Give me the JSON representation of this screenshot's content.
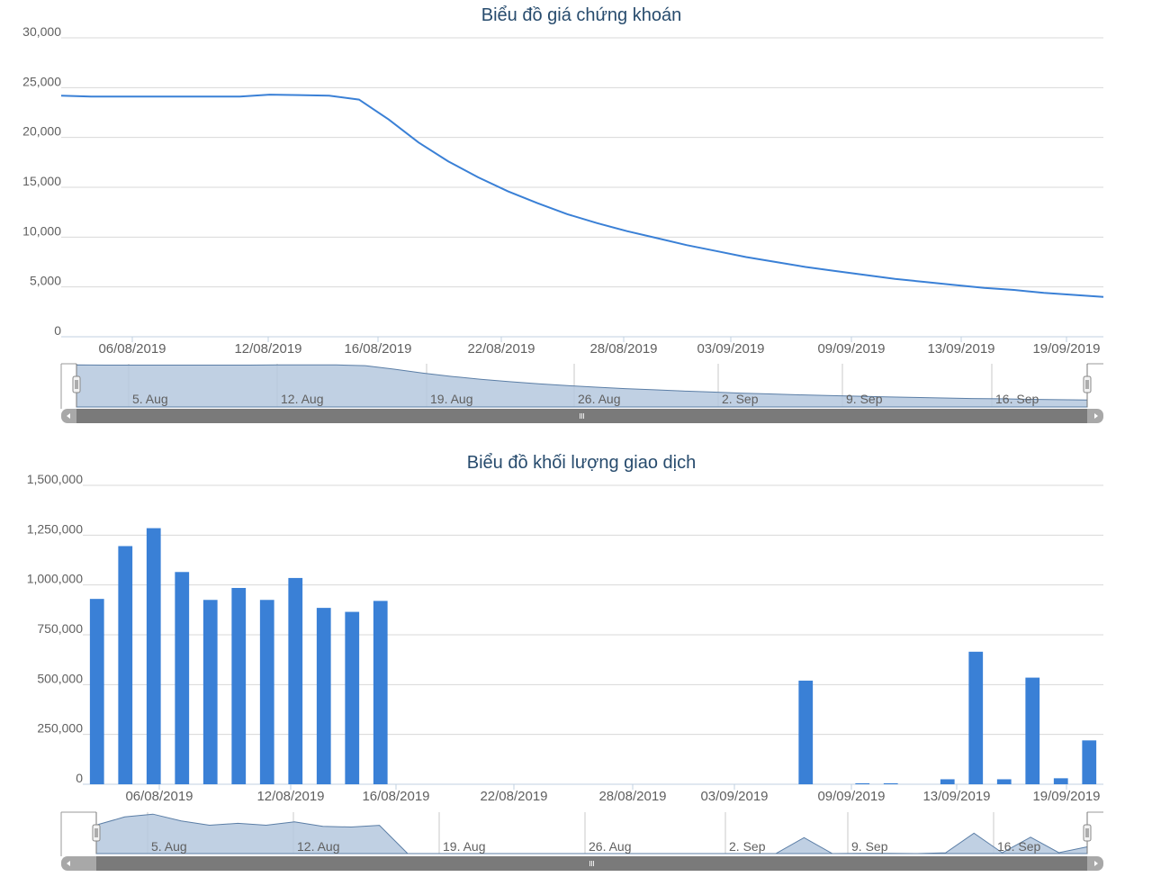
{
  "colors": {
    "series": "#3a80d6",
    "navigator_fill": "#b5c8de",
    "navigator_line": "#5b7ea6",
    "scrollbar": "#7a7a7a",
    "title": "#274b6d"
  },
  "chart_data": [
    {
      "type": "line",
      "title": "Biểu đồ giá chứng khoán",
      "xlabel": "",
      "ylabel": "",
      "ylim": [
        0,
        30000
      ],
      "y_ticks": [
        "0",
        "5,000",
        "10,000",
        "15,000",
        "20,000",
        "25,000",
        "30,000"
      ],
      "x_ticks": [
        "06/08/2019",
        "12/08/2019",
        "16/08/2019",
        "22/08/2019",
        "28/08/2019",
        "03/09/2019",
        "09/09/2019",
        "13/09/2019",
        "19/09/2019"
      ],
      "navigator_ticks": [
        "5. Aug",
        "12. Aug",
        "19. Aug",
        "26. Aug",
        "2. Sep",
        "9. Sep",
        "16. Sep"
      ],
      "grid": true,
      "series": [
        {
          "x": [
            "2019-08-01",
            "2019-08-02",
            "2019-08-05",
            "2019-08-06",
            "2019-08-07",
            "2019-08-08",
            "2019-08-09",
            "2019-08-12",
            "2019-08-13",
            "2019-08-14",
            "2019-08-15",
            "2019-08-16",
            "2019-08-19",
            "2019-08-20",
            "2019-08-21",
            "2019-08-22",
            "2019-08-23",
            "2019-08-26",
            "2019-08-27",
            "2019-08-28",
            "2019-08-29",
            "2019-08-30",
            "2019-09-03",
            "2019-09-04",
            "2019-09-05",
            "2019-09-06",
            "2019-09-09",
            "2019-09-10",
            "2019-09-11",
            "2019-09-12",
            "2019-09-13",
            "2019-09-16",
            "2019-09-17",
            "2019-09-18",
            "2019-09-19",
            "2019-09-20"
          ],
          "values": [
            24200,
            24100,
            24100,
            24100,
            24100,
            24100,
            24100,
            24300,
            24250,
            24200,
            23800,
            21800,
            19500,
            17600,
            16000,
            14600,
            13400,
            12300,
            11400,
            10600,
            9900,
            9200,
            8600,
            8000,
            7500,
            7000,
            6600,
            6200,
            5800,
            5500,
            5200,
            4900,
            4700,
            4400,
            4200,
            4000
          ]
        }
      ]
    },
    {
      "type": "bar",
      "title": "Biểu đồ khối lượng giao dịch",
      "xlabel": "",
      "ylabel": "",
      "ylim": [
        0,
        1500000
      ],
      "y_ticks": [
        "0",
        "250,000",
        "500,000",
        "750,000",
        "1,000,000",
        "1,250,000",
        "1,500,000"
      ],
      "x_ticks": [
        "06/08/2019",
        "12/08/2019",
        "16/08/2019",
        "22/08/2019",
        "28/08/2019",
        "03/09/2019",
        "09/09/2019",
        "13/09/2019",
        "19/09/2019"
      ],
      "navigator_ticks": [
        "5. Aug",
        "12. Aug",
        "19. Aug",
        "26. Aug",
        "2. Sep",
        "9. Sep",
        "16. Sep"
      ],
      "grid": true,
      "series": [
        {
          "x": [
            "2019-08-01",
            "2019-08-02",
            "2019-08-05",
            "2019-08-06",
            "2019-08-07",
            "2019-08-08",
            "2019-08-09",
            "2019-08-12",
            "2019-08-13",
            "2019-08-14",
            "2019-08-15",
            "2019-08-16",
            "2019-08-19",
            "2019-08-20",
            "2019-08-21",
            "2019-08-22",
            "2019-08-23",
            "2019-08-26",
            "2019-08-27",
            "2019-08-28",
            "2019-08-29",
            "2019-08-30",
            "2019-09-03",
            "2019-09-04",
            "2019-09-05",
            "2019-09-06",
            "2019-09-09",
            "2019-09-10",
            "2019-09-11",
            "2019-09-12",
            "2019-09-13",
            "2019-09-16",
            "2019-09-17",
            "2019-09-18",
            "2019-09-19",
            "2019-09-20"
          ],
          "values": [
            930000,
            1195000,
            1285000,
            1065000,
            925000,
            985000,
            925000,
            1035000,
            885000,
            865000,
            920000,
            0,
            0,
            0,
            0,
            0,
            0,
            0,
            0,
            0,
            0,
            0,
            0,
            0,
            0,
            520000,
            0,
            5000,
            5000,
            0,
            25000,
            665000,
            25000,
            535000,
            30000,
            220000
          ]
        }
      ]
    }
  ]
}
